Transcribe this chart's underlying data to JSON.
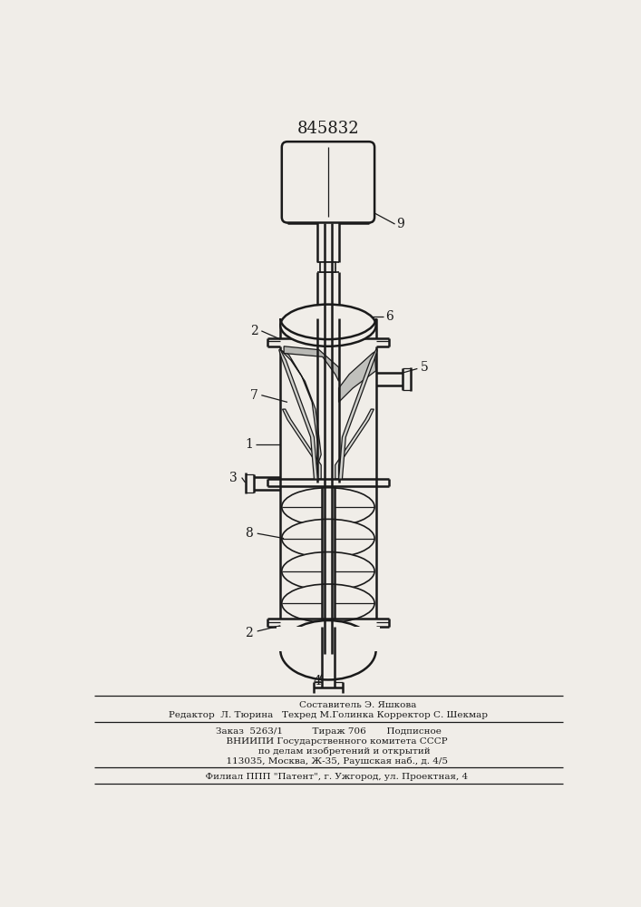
{
  "title": "845832",
  "bg_color": "#f0ede8",
  "line_color": "#1a1a1a",
  "figsize": [
    7.07,
    10.0
  ],
  "dpi": 100,
  "footer_line1": "                    Составитель Э. Яшкова",
  "footer_line2": "Редактор  Л. Тюрина   Техред М.Голинка Корректор С. Шекмар",
  "footer_line3": "Заказ  5263/1          Тираж 706       Подписное",
  "footer_line4": "      ВНИИПИ Государственного комитета СССР",
  "footer_line5": "           по делам изобретений и открытий",
  "footer_line6": "      113035, Москва, Ж-35, Раушская наб., д. 4/5",
  "footer_line7": "      Филиал ППП \"Патент\", г. Ужгород, ул. Проектная, 4"
}
